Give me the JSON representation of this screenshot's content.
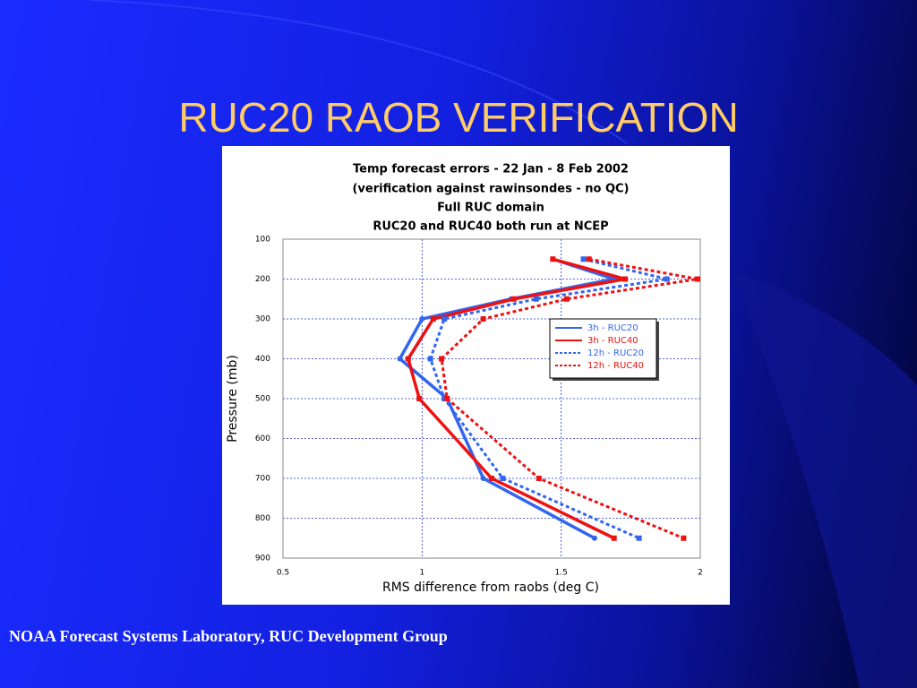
{
  "title": "RUC20 RAOB VERIFICATION",
  "footer": "NOAA Forecast Systems Laboratory, RUC Development Group",
  "chart_data": {
    "type": "line",
    "title": [
      "Temp forecast errors - 22 Jan - 8 Feb 2002",
      "(verification against rawinsondes - no QC)",
      "Full RUC domain",
      "RUC20 and RUC40 both run at NCEP"
    ],
    "x_label": "RMS difference from raobs (deg C)",
    "y_label": "Pressure (mb)",
    "y": [
      150,
      200,
      250,
      300,
      400,
      500,
      700,
      850
    ],
    "series": [
      {
        "name": "3h - RUC20",
        "color": "#3366ee",
        "dashed": false,
        "values": [
          1.47,
          1.69,
          1.32,
          1.0,
          0.92,
          1.09,
          1.22,
          1.62
        ]
      },
      {
        "name": "3h - RUC40",
        "color": "#ee1111",
        "dashed": false,
        "values": [
          1.47,
          1.73,
          1.33,
          1.04,
          0.95,
          0.99,
          1.25,
          1.69
        ]
      },
      {
        "name": "12h - RUC20",
        "color": "#3366ee",
        "dashed": true,
        "values": [
          1.58,
          1.88,
          1.41,
          1.08,
          1.03,
          1.08,
          1.29,
          1.78
        ]
      },
      {
        "name": "12h - RUC40",
        "color": "#ee1111",
        "dashed": true,
        "values": [
          1.6,
          1.99,
          1.52,
          1.22,
          1.07,
          1.09,
          1.42,
          1.94
        ]
      }
    ],
    "xlim": [
      0.5,
      2
    ],
    "xticks": [
      0.5,
      1,
      1.5,
      2
    ],
    "ylim": [
      100,
      900
    ],
    "yticks": [
      100,
      200,
      300,
      400,
      500,
      600,
      700,
      800,
      900
    ],
    "y_reversed": true,
    "grid": true
  }
}
